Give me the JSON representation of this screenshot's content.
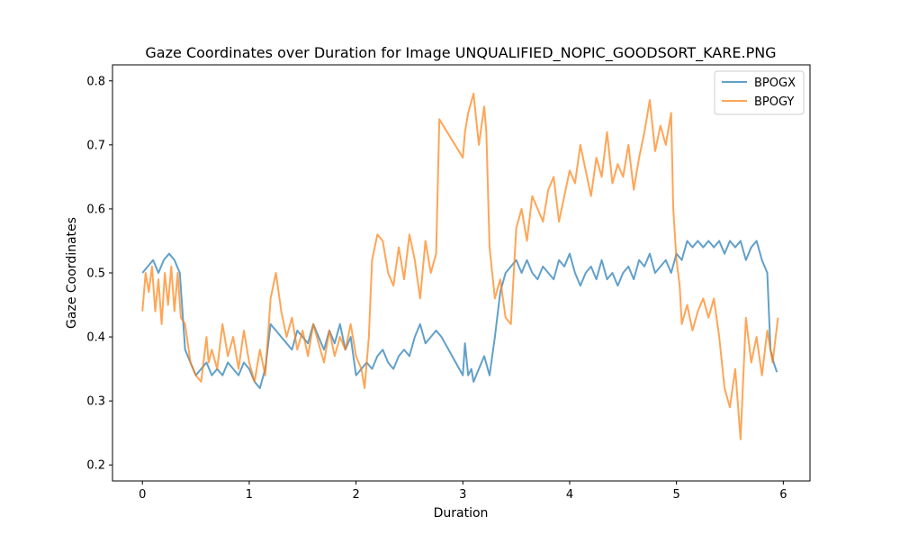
{
  "chart_data": {
    "type": "line",
    "title": "Gaze Coordinates over Duration for Image UNQUALIFIED_NOPIC_GOODSORT_KARE.PNG",
    "xlabel": "Duration",
    "ylabel": "Gaze Coordinates",
    "xlim": [
      -0.28,
      6.25
    ],
    "ylim": [
      0.175,
      0.825
    ],
    "xticks": [
      0,
      1,
      2,
      3,
      4,
      5,
      6
    ],
    "yticks": [
      0.2,
      0.3,
      0.4,
      0.5,
      0.6,
      0.7,
      0.8
    ],
    "xtick_labels": [
      "0",
      "1",
      "2",
      "3",
      "4",
      "5",
      "6"
    ],
    "ytick_labels": [
      "0.2",
      "0.3",
      "0.4",
      "0.5",
      "0.6",
      "0.7",
      "0.8"
    ],
    "grid": false,
    "legend_position": "upper right",
    "series": [
      {
        "name": "BPOGX",
        "color": "#1f77b4",
        "x": [
          0.0,
          0.05,
          0.1,
          0.15,
          0.2,
          0.25,
          0.3,
          0.35,
          0.4,
          0.45,
          0.5,
          0.55,
          0.6,
          0.65,
          0.7,
          0.75,
          0.8,
          0.85,
          0.9,
          0.95,
          1.0,
          1.05,
          1.1,
          1.15,
          1.2,
          1.25,
          1.3,
          1.35,
          1.4,
          1.45,
          1.5,
          1.55,
          1.6,
          1.65,
          1.7,
          1.75,
          1.8,
          1.85,
          1.9,
          1.95,
          2.0,
          2.05,
          2.1,
          2.15,
          2.2,
          2.25,
          2.3,
          2.35,
          2.4,
          2.45,
          2.5,
          2.55,
          2.6,
          2.65,
          2.7,
          2.75,
          2.8,
          3.0,
          3.02,
          3.05,
          3.08,
          3.1,
          3.15,
          3.2,
          3.25,
          3.3,
          3.35,
          3.4,
          3.45,
          3.5,
          3.55,
          3.6,
          3.65,
          3.7,
          3.75,
          3.8,
          3.85,
          3.9,
          3.95,
          4.0,
          4.05,
          4.1,
          4.15,
          4.2,
          4.25,
          4.3,
          4.35,
          4.4,
          4.45,
          4.5,
          4.55,
          4.6,
          4.65,
          4.7,
          4.75,
          4.8,
          4.85,
          4.9,
          4.95,
          5.0,
          5.05,
          5.1,
          5.15,
          5.2,
          5.25,
          5.3,
          5.35,
          5.4,
          5.45,
          5.5,
          5.55,
          5.6,
          5.65,
          5.7,
          5.75,
          5.8,
          5.85,
          5.88,
          5.91,
          5.94
        ],
        "values": [
          0.5,
          0.51,
          0.52,
          0.5,
          0.52,
          0.53,
          0.52,
          0.5,
          0.38,
          0.36,
          0.34,
          0.35,
          0.36,
          0.34,
          0.35,
          0.34,
          0.36,
          0.35,
          0.34,
          0.36,
          0.35,
          0.33,
          0.32,
          0.35,
          0.42,
          0.41,
          0.4,
          0.39,
          0.38,
          0.41,
          0.4,
          0.39,
          0.42,
          0.4,
          0.38,
          0.41,
          0.39,
          0.42,
          0.38,
          0.4,
          0.34,
          0.35,
          0.36,
          0.35,
          0.37,
          0.38,
          0.36,
          0.35,
          0.37,
          0.38,
          0.37,
          0.4,
          0.42,
          0.39,
          0.4,
          0.41,
          0.4,
          0.34,
          0.39,
          0.34,
          0.35,
          0.33,
          0.35,
          0.37,
          0.34,
          0.4,
          0.47,
          0.5,
          0.51,
          0.52,
          0.5,
          0.52,
          0.5,
          0.49,
          0.51,
          0.5,
          0.49,
          0.52,
          0.51,
          0.53,
          0.5,
          0.48,
          0.5,
          0.51,
          0.49,
          0.52,
          0.49,
          0.5,
          0.48,
          0.5,
          0.51,
          0.49,
          0.52,
          0.51,
          0.53,
          0.5,
          0.51,
          0.52,
          0.5,
          0.53,
          0.52,
          0.55,
          0.54,
          0.55,
          0.54,
          0.55,
          0.54,
          0.55,
          0.53,
          0.55,
          0.54,
          0.55,
          0.52,
          0.54,
          0.55,
          0.52,
          0.5,
          0.38,
          0.36,
          0.345
        ]
      },
      {
        "name": "BPOGY",
        "color": "#ff7f0e",
        "x": [
          0.0,
          0.03,
          0.06,
          0.09,
          0.12,
          0.15,
          0.18,
          0.21,
          0.24,
          0.27,
          0.3,
          0.33,
          0.36,
          0.4,
          0.45,
          0.5,
          0.55,
          0.6,
          0.62,
          0.65,
          0.7,
          0.75,
          0.8,
          0.85,
          0.9,
          0.95,
          1.0,
          1.05,
          1.1,
          1.15,
          1.2,
          1.25,
          1.3,
          1.35,
          1.4,
          1.45,
          1.5,
          1.55,
          1.6,
          1.65,
          1.7,
          1.75,
          1.8,
          1.85,
          1.9,
          1.95,
          2.0,
          2.05,
          2.08,
          2.12,
          2.15,
          2.2,
          2.25,
          2.3,
          2.35,
          2.4,
          2.45,
          2.5,
          2.55,
          2.6,
          2.65,
          2.7,
          2.75,
          2.78,
          3.0,
          3.02,
          3.05,
          3.1,
          3.15,
          3.2,
          3.22,
          3.25,
          3.3,
          3.35,
          3.4,
          3.45,
          3.5,
          3.55,
          3.6,
          3.65,
          3.7,
          3.75,
          3.8,
          3.85,
          3.9,
          3.95,
          4.0,
          4.05,
          4.1,
          4.15,
          4.2,
          4.25,
          4.3,
          4.35,
          4.4,
          4.45,
          4.5,
          4.55,
          4.6,
          4.65,
          4.7,
          4.75,
          4.8,
          4.85,
          4.9,
          4.95,
          4.97,
          5.0,
          5.03,
          5.05,
          5.1,
          5.15,
          5.2,
          5.25,
          5.3,
          5.35,
          5.4,
          5.45,
          5.5,
          5.55,
          5.6,
          5.65,
          5.7,
          5.75,
          5.8,
          5.85,
          5.9,
          5.95
        ],
        "values": [
          0.44,
          0.5,
          0.47,
          0.51,
          0.44,
          0.49,
          0.42,
          0.5,
          0.45,
          0.51,
          0.44,
          0.5,
          0.43,
          0.42,
          0.36,
          0.34,
          0.33,
          0.4,
          0.36,
          0.38,
          0.35,
          0.42,
          0.37,
          0.4,
          0.35,
          0.41,
          0.36,
          0.33,
          0.38,
          0.34,
          0.46,
          0.5,
          0.44,
          0.4,
          0.43,
          0.38,
          0.41,
          0.37,
          0.42,
          0.39,
          0.36,
          0.41,
          0.37,
          0.4,
          0.38,
          0.42,
          0.37,
          0.35,
          0.32,
          0.4,
          0.52,
          0.56,
          0.55,
          0.5,
          0.48,
          0.54,
          0.49,
          0.56,
          0.52,
          0.46,
          0.55,
          0.5,
          0.53,
          0.74,
          0.68,
          0.72,
          0.75,
          0.78,
          0.7,
          0.76,
          0.72,
          0.54,
          0.46,
          0.49,
          0.43,
          0.42,
          0.57,
          0.6,
          0.55,
          0.62,
          0.6,
          0.58,
          0.63,
          0.65,
          0.58,
          0.62,
          0.66,
          0.64,
          0.7,
          0.66,
          0.62,
          0.68,
          0.65,
          0.72,
          0.64,
          0.67,
          0.65,
          0.7,
          0.63,
          0.68,
          0.72,
          0.77,
          0.69,
          0.73,
          0.7,
          0.75,
          0.6,
          0.52,
          0.48,
          0.42,
          0.45,
          0.41,
          0.44,
          0.46,
          0.43,
          0.46,
          0.4,
          0.32,
          0.29,
          0.35,
          0.24,
          0.43,
          0.36,
          0.4,
          0.34,
          0.41,
          0.36,
          0.43
        ]
      }
    ]
  }
}
